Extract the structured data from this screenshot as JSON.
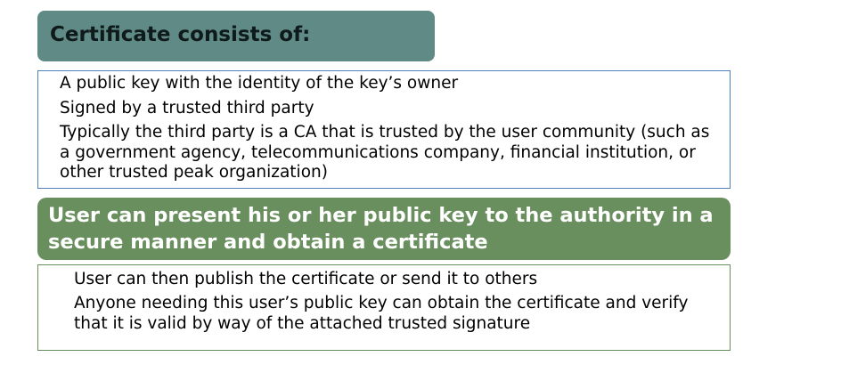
{
  "section1": {
    "title": "Certificate consists of:",
    "items": [
      "A public key with the identity of the key’s owner",
      "Signed by a trusted third party",
      "Typically the third party is a CA that is trusted by the user community (such as a government agency, telecommunications company, financial institution, or other trusted peak organization)"
    ]
  },
  "section2": {
    "title": "User can present his or her public key to the authority in a secure manner and obtain a certificate",
    "items": [
      "User can then publish the certificate or send it to others",
      "Anyone needing this user’s public key can obtain the certificate and verify that it is valid by way of the attached trusted signature"
    ]
  },
  "colors": {
    "header1_bg": "#5f8a86",
    "header2_bg": "#6a8f5f",
    "box1_border": "#4f81bd",
    "box2_border": "#6a8f5f"
  }
}
